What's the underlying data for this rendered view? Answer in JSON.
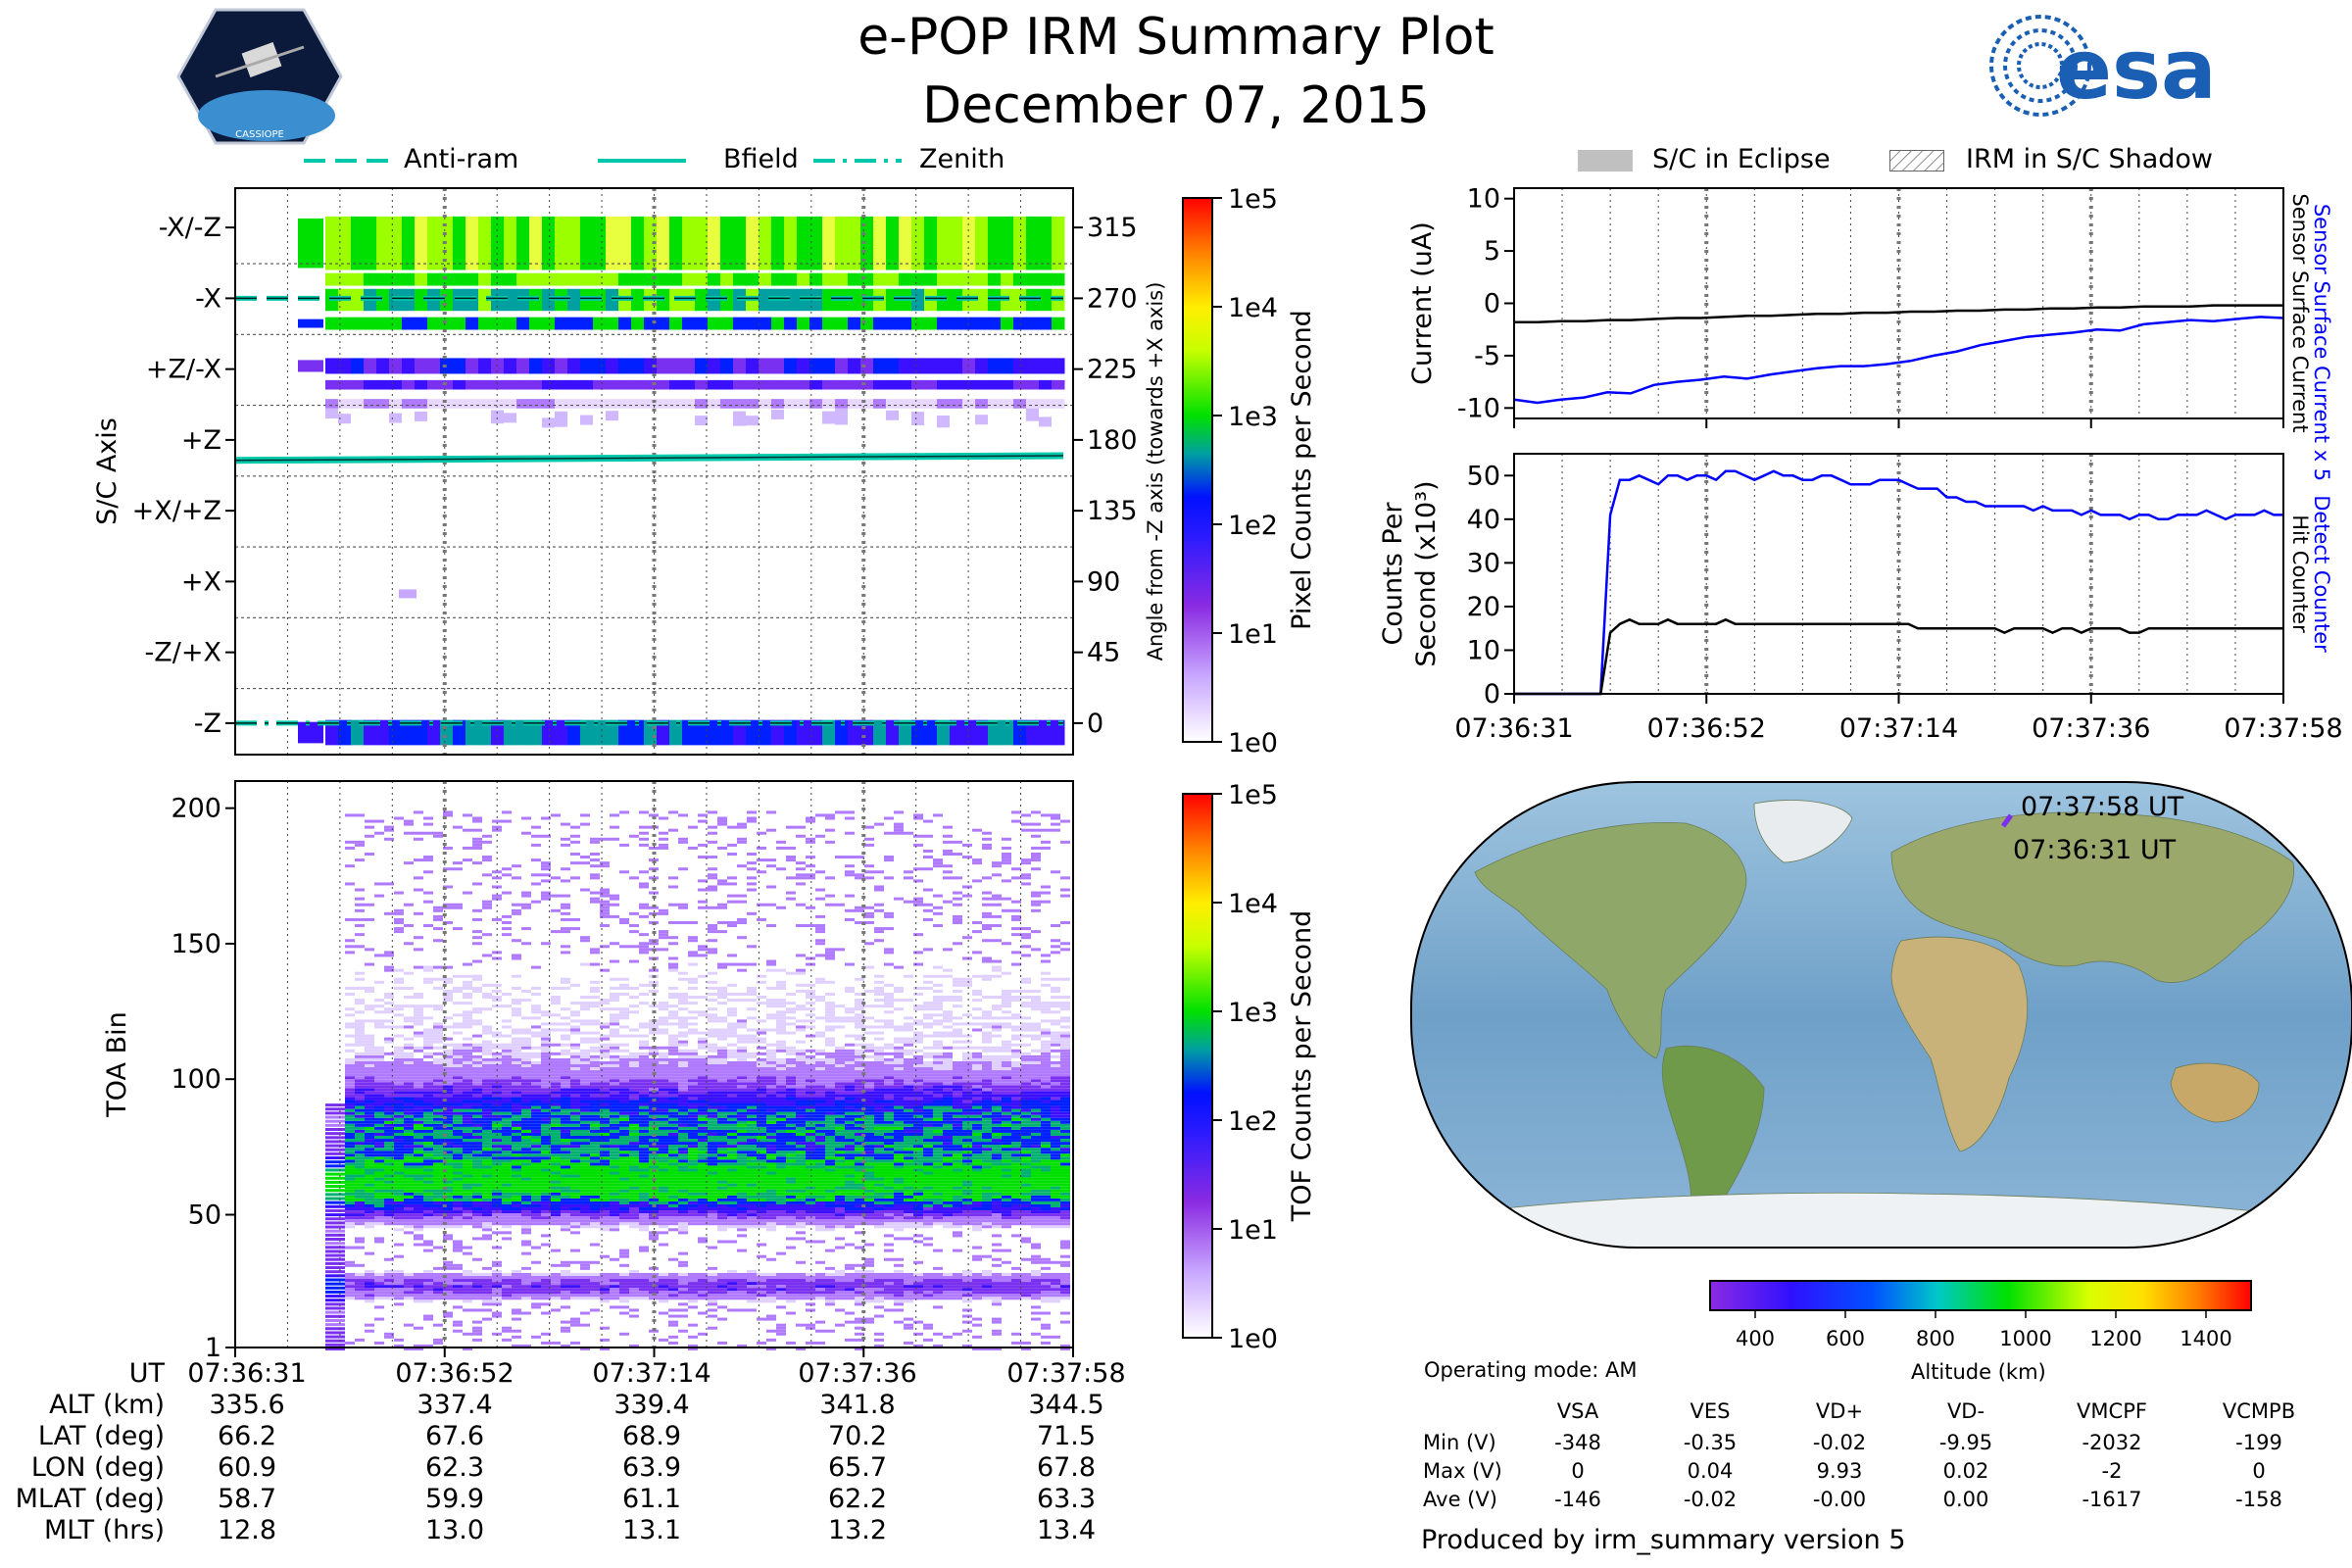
{
  "title": "e-POP IRM Summary Plot",
  "date": "December 07, 2015",
  "logos": {
    "cassiope": "CASSIOPE",
    "esa": "esa"
  },
  "legend_left": [
    "Anti-ram",
    "Bfield",
    "Zenith"
  ],
  "legend_right": [
    "S/C in Eclipse",
    "IRM in S/C Shadow"
  ],
  "colors": {
    "anti_ram": "#00c8aa",
    "bfield": "#00c8aa",
    "zenith": "#00c8aa",
    "blue_line": "#0000ff",
    "black_line": "#000000",
    "eclipse": "#c0c0c0",
    "grid": "#888888"
  },
  "chart_data": [
    {
      "id": "pixel_counts",
      "type": "heatmap",
      "title": "",
      "ylabel": "S/C Axis",
      "ylabel_right": "Angle from -Z axis (towards +X axis)",
      "axis_labels": [
        "-X/-Z",
        "-X",
        "+Z/-X",
        "+Z",
        "+X/+Z",
        "+X",
        "-Z/+X",
        "-Z"
      ],
      "angle_ticks": [
        "315",
        "270",
        "225",
        "180",
        "135",
        "90",
        "45",
        "0"
      ],
      "colorbar_label": "Pixel Counts per Second",
      "colorbar_ticks": [
        "1e5",
        "1e4",
        "1e3",
        "1e2",
        "1e1",
        "1e0"
      ],
      "bfield_angle": [
        167,
        170
      ],
      "anti_ram_angle": 270,
      "zenith_angle": 0
    },
    {
      "id": "tof_counts",
      "type": "heatmap",
      "ylabel": "TOA Bin",
      "yticks": [
        "200",
        "150",
        "100",
        "50",
        "1"
      ],
      "ylim": [
        1,
        210
      ],
      "colorbar_label": "TOF Counts per Second",
      "colorbar_ticks": [
        "1e5",
        "1e4",
        "1e3",
        "1e2",
        "1e1",
        "1e0"
      ],
      "bands": [
        {
          "center": 65,
          "width": 18,
          "peak": "1e3"
        },
        {
          "center": 85,
          "width": 25,
          "peak": "1e2"
        },
        {
          "center": 25,
          "width": 8,
          "peak": "1e1"
        }
      ]
    },
    {
      "id": "current",
      "type": "line",
      "ylabel": "Current (uA)",
      "ylim": [
        -11,
        11
      ],
      "yticks": [
        "10",
        "5",
        "0",
        "-5",
        "-10"
      ],
      "right_label_blue": "Sensor Surface Current x 5",
      "right_label_black": "Sensor Surface Current",
      "series": [
        {
          "name": "Sensor Surface Current x 5",
          "color": "blue",
          "values": [
            -9.2,
            -9.5,
            -9.2,
            -9.0,
            -8.5,
            -8.6,
            -7.8,
            -7.5,
            -7.3,
            -7.0,
            -7.2,
            -6.8,
            -6.5,
            -6.2,
            -6.0,
            -6.0,
            -5.8,
            -5.5,
            -5.0,
            -4.6,
            -4.0,
            -3.6,
            -3.2,
            -3.0,
            -2.8,
            -2.5,
            -2.6,
            -2.0,
            -1.8,
            -1.6,
            -1.7,
            -1.5,
            -1.3,
            -1.4
          ]
        },
        {
          "name": "Sensor Surface Current",
          "color": "black",
          "values": [
            -1.8,
            -1.8,
            -1.7,
            -1.7,
            -1.6,
            -1.6,
            -1.5,
            -1.4,
            -1.4,
            -1.3,
            -1.2,
            -1.2,
            -1.1,
            -1.0,
            -1.0,
            -0.9,
            -0.9,
            -0.8,
            -0.8,
            -0.7,
            -0.7,
            -0.6,
            -0.6,
            -0.5,
            -0.5,
            -0.4,
            -0.4,
            -0.3,
            -0.3,
            -0.3,
            -0.2,
            -0.2,
            -0.2,
            -0.2
          ]
        }
      ]
    },
    {
      "id": "counts",
      "type": "line",
      "ylabel": "Counts Per Second (x10^3)",
      "ylim": [
        0,
        55
      ],
      "yticks": [
        "50",
        "40",
        "30",
        "20",
        "10",
        "0"
      ],
      "right_label_blue": "Detect Counter",
      "right_label_black": "Hit Counter",
      "series": [
        {
          "name": "Detect Counter",
          "color": "blue",
          "values": [
            0,
            0,
            0,
            0,
            0,
            0,
            0,
            0,
            0,
            0,
            41,
            49,
            49,
            50,
            49,
            48,
            50,
            50,
            49,
            50,
            50,
            49,
            51,
            51,
            50,
            49,
            50,
            51,
            50,
            50,
            49,
            49,
            50,
            50,
            49,
            48,
            48,
            48,
            49,
            49,
            49,
            48,
            47,
            47,
            47,
            45,
            45,
            44,
            44,
            43,
            43,
            43,
            43,
            43,
            42,
            43,
            42,
            42,
            42,
            41,
            42,
            41,
            41,
            41,
            40,
            41,
            41,
            40,
            40,
            41,
            41,
            41,
            42,
            41,
            40,
            41,
            41,
            41,
            42,
            41,
            41
          ]
        },
        {
          "name": "Hit Counter",
          "color": "black",
          "values": [
            0,
            0,
            0,
            0,
            0,
            0,
            0,
            0,
            0,
            0,
            14,
            16,
            17,
            16,
            16,
            16,
            17,
            16,
            16,
            16,
            16,
            16,
            17,
            16,
            16,
            16,
            16,
            16,
            16,
            16,
            16,
            16,
            16,
            16,
            16,
            16,
            16,
            16,
            16,
            16,
            16,
            16,
            15,
            15,
            15,
            15,
            15,
            15,
            15,
            15,
            15,
            14,
            15,
            15,
            15,
            15,
            14,
            15,
            15,
            14,
            15,
            15,
            15,
            15,
            14,
            14,
            15,
            15,
            15,
            15,
            15,
            15,
            15,
            15,
            15,
            15,
            15,
            15,
            15,
            15,
            15
          ]
        }
      ]
    }
  ],
  "time_ticks": [
    "07:36:31",
    "07:36:52",
    "07:37:14",
    "07:37:36",
    "07:37:58"
  ],
  "table": {
    "row_labels": [
      "UT",
      "ALT (km)",
      "LAT (deg)",
      "LON (deg)",
      "MLAT (deg)",
      "MLT (hrs)"
    ],
    "ut": [
      "07:36:31",
      "07:36:52",
      "07:37:14",
      "07:37:36",
      "07:37:58"
    ],
    "alt": [
      "335.6",
      "337.4",
      "339.4",
      "341.8",
      "344.5"
    ],
    "lat": [
      "66.2",
      "67.6",
      "68.9",
      "70.2",
      "71.5"
    ],
    "lon": [
      "60.9",
      "62.3",
      "63.9",
      "65.7",
      "67.8"
    ],
    "mlat": [
      "58.7",
      "59.9",
      "61.1",
      "62.2",
      "63.3"
    ],
    "mlt": [
      "12.8",
      "13.0",
      "13.1",
      "13.2",
      "13.4"
    ]
  },
  "map": {
    "label_end": "07:37:58 UT",
    "label_start": "07:36:31 UT",
    "altitude_label": "Altitude (km)",
    "altitude_ticks": [
      "400",
      "600",
      "800",
      "1000",
      "1200",
      "1400"
    ]
  },
  "stats": {
    "mode": "Operating mode: AM",
    "columns": [
      "VSA",
      "VES",
      "VD+",
      "VD-",
      "VMCPF",
      "VCMPB"
    ],
    "rows": [
      {
        "label": "Min (V)",
        "values": [
          "-348",
          "-0.35",
          "-0.02",
          "-9.95",
          "-2032",
          "-199"
        ]
      },
      {
        "label": "Max (V)",
        "values": [
          "0",
          "0.04",
          "9.93",
          "0.02",
          "-2",
          "0"
        ]
      },
      {
        "label": "Ave (V)",
        "values": [
          "-146",
          "-0.02",
          "-0.00",
          "0.00",
          "-1617",
          "-158"
        ]
      }
    ],
    "footer": "Produced by irm_summary version 5"
  }
}
